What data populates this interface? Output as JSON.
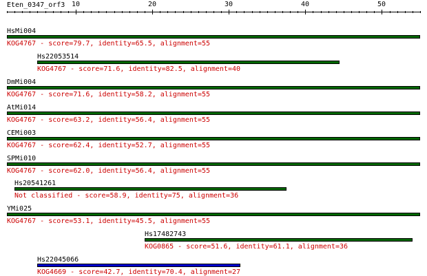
{
  "query_name": "Eten_0347_orf3",
  "axis": {
    "min": 1,
    "max": 55,
    "tick_labels": [
      "10",
      "20",
      "30",
      "40",
      "50"
    ],
    "major_ticks": [
      10,
      20,
      30,
      40,
      50
    ]
  },
  "colors": {
    "text": "#000000",
    "desc_text": "#cc0000",
    "bar_green": "#006600",
    "bar_blue": "#0000cc"
  },
  "hits": [
    {
      "name": "HsMi004",
      "desc": "KOG4767 - score=79.7, identity=65.5, alignment=55",
      "start": 1,
      "end": 55,
      "color": "#006600"
    },
    {
      "name": "Hs22053514",
      "desc": "KOG4767 - score=71.6, identity=82.5, alignment=40",
      "start": 5,
      "end": 44.5,
      "color": "#006600"
    },
    {
      "name": "DmMi004",
      "desc": "KOG4767 - score=71.6, identity=58.2, alignment=55",
      "start": 1,
      "end": 55,
      "color": "#006600"
    },
    {
      "name": "AtMi014",
      "desc": "KOG4767 - score=63.2, identity=56.4, alignment=55",
      "start": 1,
      "end": 55,
      "color": "#006600"
    },
    {
      "name": "CEMi003",
      "desc": "KOG4767 - score=62.4, identity=52.7, alignment=55",
      "start": 1,
      "end": 55,
      "color": "#006600"
    },
    {
      "name": "SPMi010",
      "desc": "KOG4767 - score=62.0, identity=56.4, alignment=55",
      "start": 1,
      "end": 55,
      "color": "#006600"
    },
    {
      "name": "Hs20541261",
      "desc": "Not classified - score=58.9, identity=75, alignment=36",
      "start": 2,
      "end": 37.5,
      "color": "#006600"
    },
    {
      "name": "YMi025",
      "desc": "KOG4767 - score=53.1, identity=45.5, alignment=55",
      "start": 1,
      "end": 55,
      "color": "#006600"
    },
    {
      "name": "Hs17482743",
      "desc": "KOG0865 - score=51.6, identity=61.1, alignment=36",
      "start": 19,
      "end": 54,
      "color": "#006600"
    },
    {
      "name": "Hs22045066",
      "desc": "KOG4669 - score=42.7, identity=70.4, alignment=27",
      "start": 5,
      "end": 31.5,
      "color": "#0000cc"
    }
  ]
}
